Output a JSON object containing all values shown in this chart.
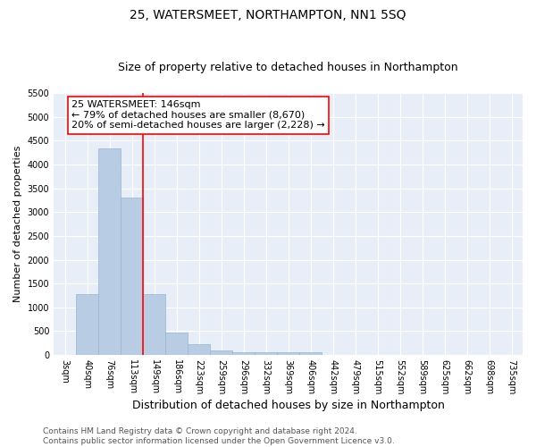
{
  "title": "25, WATERSMEET, NORTHAMPTON, NN1 5SQ",
  "subtitle": "Size of property relative to detached houses in Northampton",
  "xlabel": "Distribution of detached houses by size in Northampton",
  "ylabel": "Number of detached properties",
  "categories": [
    "3sqm",
    "40sqm",
    "76sqm",
    "113sqm",
    "149sqm",
    "186sqm",
    "223sqm",
    "259sqm",
    "296sqm",
    "332sqm",
    "369sqm",
    "406sqm",
    "442sqm",
    "479sqm",
    "515sqm",
    "552sqm",
    "589sqm",
    "625sqm",
    "662sqm",
    "698sqm",
    "735sqm"
  ],
  "values": [
    0,
    1270,
    4330,
    3300,
    1270,
    475,
    220,
    100,
    65,
    55,
    55,
    60,
    0,
    0,
    0,
    0,
    0,
    0,
    0,
    0,
    0
  ],
  "bar_color": "#b8cce4",
  "bar_edge_color": "#9ab4d0",
  "vline_color": "red",
  "vline_x": 3.5,
  "annotation_text": "25 WATERSMEET: 146sqm\n← 79% of detached houses are smaller (8,670)\n20% of semi-detached houses are larger (2,228) →",
  "annotation_box_color": "white",
  "annotation_box_edge_color": "red",
  "ylim": [
    0,
    5500
  ],
  "yticks": [
    0,
    500,
    1000,
    1500,
    2000,
    2500,
    3000,
    3500,
    4000,
    4500,
    5000,
    5500
  ],
  "background_color": "#e8eef7",
  "grid_color": "white",
  "footer": "Contains HM Land Registry data © Crown copyright and database right 2024.\nContains public sector information licensed under the Open Government Licence v3.0.",
  "title_fontsize": 10,
  "subtitle_fontsize": 9,
  "xlabel_fontsize": 9,
  "ylabel_fontsize": 8,
  "tick_fontsize": 7,
  "annotation_fontsize": 8,
  "footer_fontsize": 6.5
}
